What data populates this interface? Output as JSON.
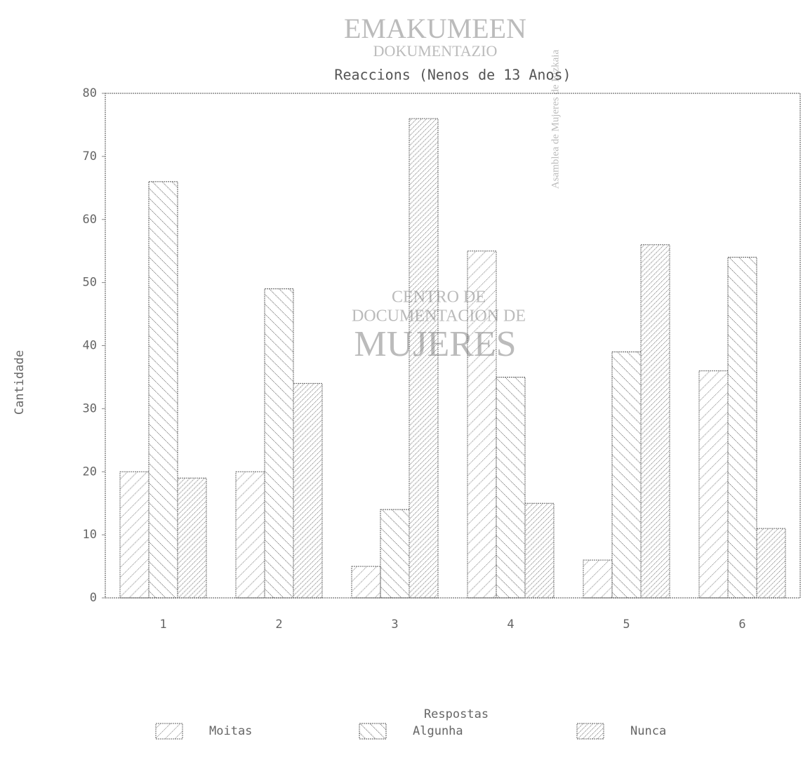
{
  "chart_data": {
    "type": "bar",
    "title": "Reaccions (Nenos de 13 Anos)",
    "x_label": "Respostas",
    "y_label": "Cantidade",
    "categories": [
      "1",
      "2",
      "3",
      "4",
      "5",
      "6"
    ],
    "series": [
      {
        "name": "Moitas",
        "color": "#666666",
        "values": [
          20,
          20,
          5,
          55,
          6,
          36
        ]
      },
      {
        "name": "Algunha",
        "color": "#555555",
        "values": [
          66,
          49,
          14,
          35,
          39,
          54
        ]
      },
      {
        "name": "Nunca",
        "color": "#666666",
        "values": [
          19,
          34,
          76,
          15,
          56,
          11
        ]
      }
    ],
    "ylim": [
      0,
      80
    ],
    "yticks": [
      0,
      10,
      20,
      30,
      40,
      50,
      60,
      70,
      80
    ],
    "grid": false,
    "legend": "bottom",
    "watermark": [
      "EMAKUMEEN",
      "DOKUMENTAZIO",
      "CENTRO DE",
      "DOCUMENTACION DE",
      "MUJERES",
      "Asamblea de Mujeres de Bizkaia"
    ]
  }
}
